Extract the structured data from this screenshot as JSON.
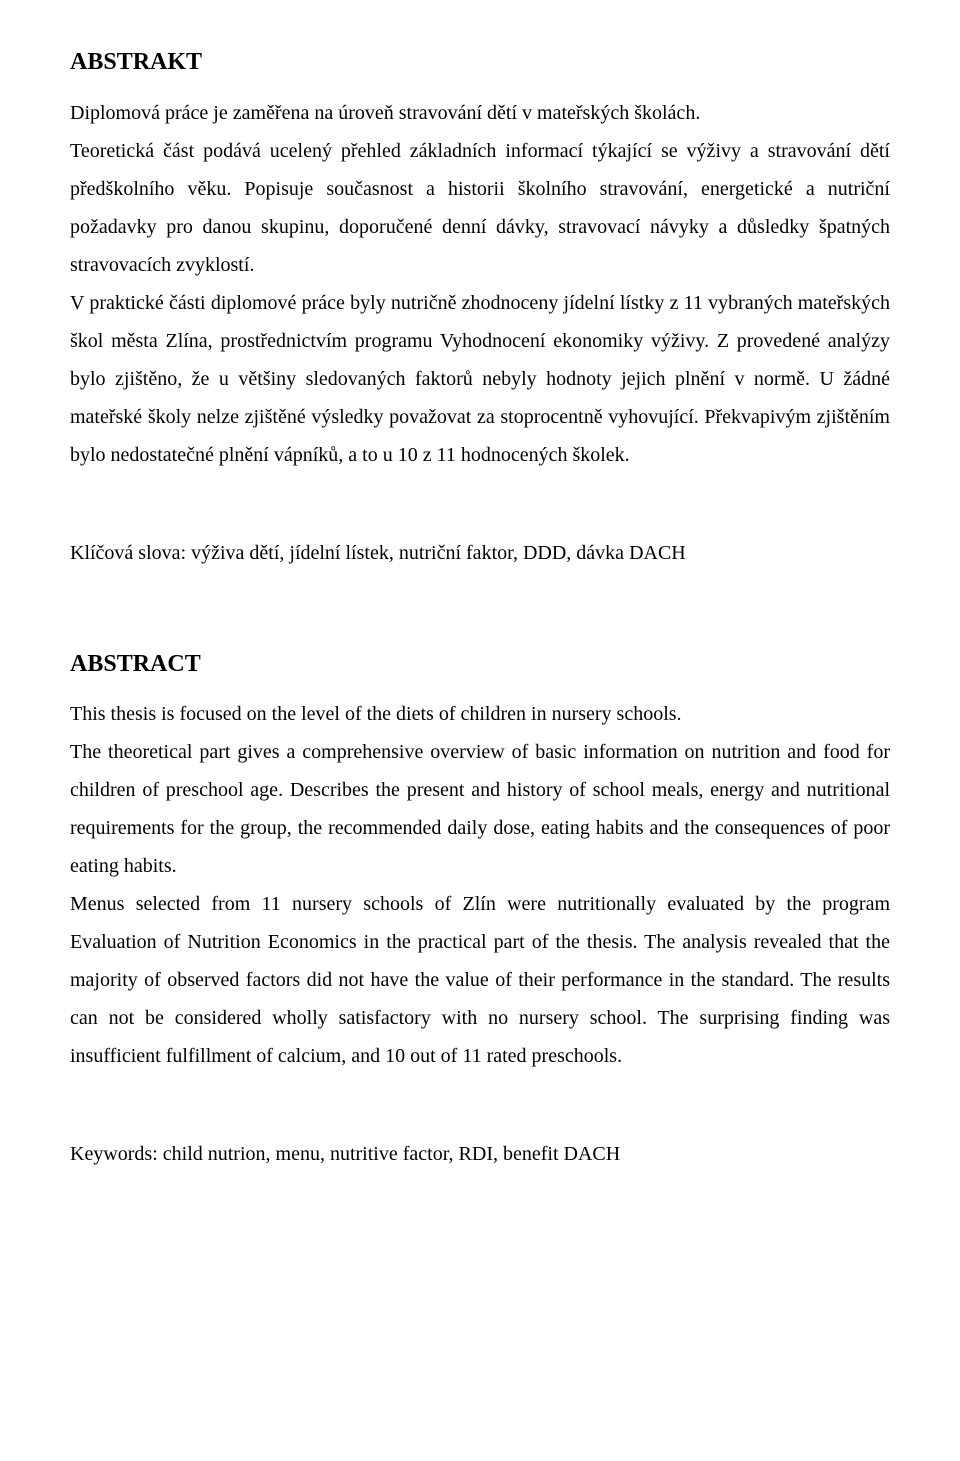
{
  "doc": {
    "text_color": "#000000",
    "background_color": "#ffffff",
    "font_family": "Times New Roman",
    "body_fontsize_pt": 15,
    "heading_fontsize_pt": 18,
    "line_height": 1.9,
    "text_align": "justify"
  },
  "abstrakt": {
    "heading": "ABSTRAKT",
    "p1": "Diplomová práce je zaměřena na úroveň stravování dětí v mateřských školách.",
    "p2": "Teoretická část podává ucelený přehled základních informací týkající se výživy a stravování dětí předškolního věku. Popisuje současnost a historii školního stravování, energetické a nutriční požadavky pro danou skupinu, doporučené denní dávky, stravovací návyky a důsledky špatných stravovacích zvyklostí.",
    "p3": "V praktické části diplomové práce byly nutričně zhodnoceny jídelní lístky z 11 vybraných mateřských škol města Zlína, prostřednictvím programu Vyhodnocení ekonomiky výživy. Z provedené analýzy bylo zjištěno, že u většiny sledovaných faktorů nebyly hodnoty jejich plnění v normě. U žádné mateřské školy nelze zjištěné výsledky považovat za stoprocentně vyhovující. Překvapivým zjištěním bylo nedostatečné plnění vápníků, a to u 10 z 11 hodnocených školek.",
    "keywords": "Klíčová slova: výživa dětí, jídelní lístek, nutriční faktor, DDD, dávka DACH"
  },
  "abstract_en": {
    "heading": "ABSTRACT",
    "p1": "This thesis is focused on the level of the diets of children in nursery schools.",
    "p2": "The theoretical part gives a comprehensive overview of basic information on nutrition and food for children of preschool age. Describes the present and history of school meals, energy and nutritional requirements for the group, the recommended daily dose, eating habits and the consequences of poor eating habits.",
    "p3": "Menus selected from 11 nursery schools of Zlín were nutritionally evaluated by the program Evaluation of Nutrition Economics in the practical part of the thesis. The analysis revealed that the majority of observed factors did not have the value of their performance in the standard. The results can not be considered wholly satisfactory with no nursery school. The surprising finding was insufficient fulfillment of calcium, and 10 out of 11 rated preschools.",
    "keywords": "Keywords: child nutrion, menu, nutritive factor, RDI, benefit DACH"
  }
}
